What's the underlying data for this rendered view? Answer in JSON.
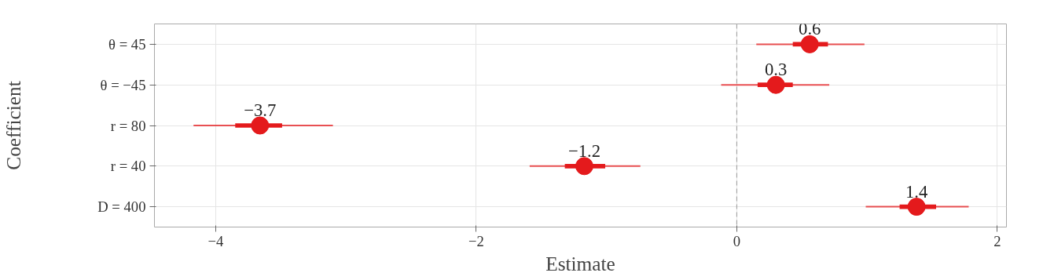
{
  "chart_data": {
    "type": "box",
    "orientation": "horizontal",
    "xlabel": "Estimate",
    "ylabel": "Coefficient",
    "color": "#e41a1c",
    "marker": "circle",
    "categories": [
      "θ = 45",
      "θ = −45",
      "r = 80",
      "r = 40",
      "D = 400"
    ],
    "boxes": [
      {
        "low": 0.15,
        "q1": 0.43,
        "median": 0.56,
        "q3": 0.7,
        "high": 0.98
      },
      {
        "low": -0.12,
        "q1": 0.16,
        "median": 0.3,
        "q3": 0.43,
        "high": 0.71
      },
      {
        "low": -4.17,
        "q1": -3.85,
        "median": -3.66,
        "q3": -3.49,
        "high": -3.1
      },
      {
        "low": -1.59,
        "q1": -1.32,
        "median": -1.17,
        "q3": -1.01,
        "high": -0.74
      },
      {
        "low": 0.99,
        "q1": 1.25,
        "median": 1.38,
        "q3": 1.53,
        "high": 1.78
      }
    ],
    "annotations": [
      "0.6",
      "0.3",
      "−3.7",
      "−1.2",
      "1.4"
    ],
    "xlim": [
      -4.47,
      2.07
    ],
    "xticks": [
      {
        "value": -4,
        "label": "−4"
      },
      {
        "value": -2,
        "label": "−2"
      },
      0,
      2
    ],
    "ref_lines": [
      {
        "axis": "x",
        "value": 0,
        "color": "#999999",
        "line_style": "dashed"
      }
    ],
    "grid": true
  }
}
